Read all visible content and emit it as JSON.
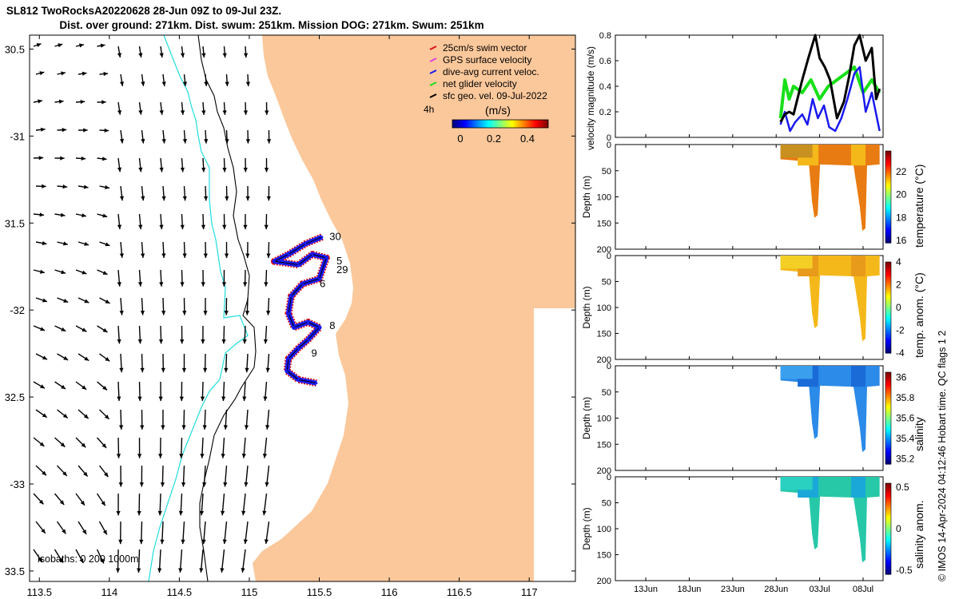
{
  "header": {
    "title_line1": "SL812 TwoRocksA20220628 28-Jun 09Z to 09-Jul 23Z.",
    "title_line2": "Dist. over ground: 271km. Dist. swum: 251km. Mission DOG: 271km. Swum: 251km"
  },
  "colors": {
    "land": "#fbc89b",
    "swim_vector": "#dd1111",
    "gps_velocity": "#e040e0",
    "dive_avg": "#1a1aee",
    "net_glider": "#18e018",
    "sfc_geo": "#000000",
    "isobath_0": "#000000",
    "isobath_200": "#000000",
    "isobath_1000": "#22dddd"
  },
  "map": {
    "lon_ticks": [
      "113.5",
      "114",
      "114.5",
      "115",
      "115.5",
      "116",
      "116.5",
      "117"
    ],
    "lat_ticks": [
      "30.5",
      "-31",
      "31.5",
      "-32",
      "32.5",
      "-33",
      "33.5"
    ],
    "lon_range": [
      113.43,
      117.33
    ],
    "lat_range": [
      -33.56,
      -30.42
    ],
    "isobaths_label": "isobaths: 0   200  1000m",
    "legend": [
      {
        "label": "25cm/s swim vector",
        "color_key": "swim_vector"
      },
      {
        "label": "GPS surface velocity",
        "color_key": "gps_velocity"
      },
      {
        "label": "dive-avg current veloc.",
        "color_key": "dive_avg"
      },
      {
        "label": "net glider velocity",
        "color_key": "net_glider"
      },
      {
        "label": "sfc geo. vel. 09-Jul-2022",
        "color_key": "sfc_geo"
      }
    ],
    "time_label": "4h",
    "colorbar_title": "(m/s)",
    "colorbar_ticks": [
      "0",
      "0.2",
      "0.4"
    ],
    "day_labels": [
      {
        "text": "30",
        "lon": 115.55,
        "lat": -31.58
      },
      {
        "text": "5",
        "lon": 115.6,
        "lat": -31.72
      },
      {
        "text": "29",
        "lon": 115.6,
        "lat": -31.77
      },
      {
        "text": "6",
        "lon": 115.48,
        "lat": -31.85
      },
      {
        "text": "8",
        "lon": 115.55,
        "lat": -32.09
      },
      {
        "text": "9",
        "lon": 115.42,
        "lat": -32.25
      }
    ]
  },
  "right_panels": {
    "x_ticks": [
      "13Jun",
      "18Jun",
      "23Jun",
      "28Jun",
      "03Jul",
      "08Jul"
    ],
    "velocity_ylabel": "velocity magnitude (m/s)",
    "velocity_yticks": [
      "0",
      "0.2",
      "0.4",
      "0.6",
      "0.8"
    ],
    "depth_ylabel": "Depth (m)",
    "depth_ticks": [
      "0",
      "50",
      "100",
      "150",
      "200"
    ],
    "temperature": {
      "label": "temperature (°C)",
      "ticks": [
        "16",
        "18",
        "20",
        "22"
      ]
    },
    "temp_anom": {
      "label": "temp. anom. (°C)",
      "ticks": [
        "-4",
        "-2",
        "0",
        "2",
        "4"
      ]
    },
    "salinity": {
      "label": "salinity",
      "ticks": [
        "35.2",
        "35.4",
        "35.6",
        "35.8",
        "36"
      ]
    },
    "salinity_anom": {
      "label": "salinity anom.",
      "ticks": [
        "-0.5",
        "0",
        "0.5"
      ]
    }
  },
  "footer": {
    "credit": "© IMOS 14-Apr-2024 04:12:46 Hobart time. QC flags 1  2"
  },
  "chart_data": [
    {
      "type": "scatter",
      "title": "SL812 TwoRocksA20220628 28-Jun 09Z to 09-Jul 23Z.",
      "xlabel": "",
      "ylabel": "",
      "xlim": [
        113.43,
        117.33
      ],
      "ylim": [
        -33.56,
        -30.42
      ],
      "series": [
        {
          "name": "dive-avg current veloc.",
          "x": [
            115.52,
            115.4,
            115.28,
            115.18,
            115.35,
            115.45,
            115.55,
            115.5,
            115.38,
            115.3,
            115.28,
            115.32,
            115.42,
            115.5,
            115.42,
            115.35,
            115.28,
            115.27,
            115.35,
            115.48
          ],
          "y": [
            -31.58,
            -31.62,
            -31.68,
            -31.72,
            -31.74,
            -31.68,
            -31.7,
            -31.82,
            -31.85,
            -31.92,
            -32.02,
            -32.1,
            -32.07,
            -32.1,
            -32.17,
            -32.22,
            -32.28,
            -32.35,
            -32.4,
            -32.42
          ]
        }
      ]
    },
    {
      "type": "line",
      "title": "",
      "ylabel": "velocity magnitude (m/s)",
      "ylim": [
        0,
        0.8
      ],
      "x_ticks": [
        "13Jun",
        "18Jun",
        "23Jun",
        "28Jun",
        "03Jul",
        "08Jul"
      ],
      "series": [
        {
          "name": "sfc geo. vel.",
          "x": [
            28.5,
            29.0,
            29.5,
            30.0,
            31.0,
            31.7,
            32.5,
            33.0,
            33.6,
            34.2,
            35.0,
            35.8,
            36.4,
            37.0,
            37.6,
            38.3,
            39.0,
            39.5,
            39.9
          ],
          "y": [
            0.12,
            0.18,
            0.2,
            0.18,
            0.45,
            0.62,
            0.8,
            0.62,
            0.55,
            0.45,
            0.15,
            0.28,
            0.48,
            0.72,
            0.8,
            0.6,
            0.7,
            0.3,
            0.38
          ]
        },
        {
          "name": "net glider velocity",
          "x": [
            28.5,
            29.0,
            29.5,
            30.0,
            31.0,
            32.0,
            33.0,
            34.0,
            35.0,
            36.0,
            37.0,
            38.0,
            39.0,
            39.9
          ],
          "y": [
            0.15,
            0.45,
            0.3,
            0.4,
            0.35,
            0.45,
            0.3,
            0.4,
            0.45,
            0.5,
            0.55,
            0.35,
            0.45,
            0.35
          ]
        },
        {
          "name": "dive-avg current veloc.",
          "x": [
            28.5,
            29.0,
            29.6,
            30.2,
            31.0,
            31.6,
            32.2,
            32.8,
            33.5,
            34.1,
            34.8,
            35.5,
            36.2,
            37.0,
            37.6,
            38.3,
            39.0,
            39.6,
            39.9
          ],
          "y": [
            0.1,
            0.2,
            0.05,
            0.12,
            0.18,
            0.1,
            0.3,
            0.15,
            0.25,
            0.08,
            0.05,
            0.15,
            0.3,
            0.5,
            0.55,
            0.2,
            0.35,
            0.15,
            0.05
          ]
        }
      ]
    },
    {
      "type": "heatmap",
      "ylabel": "Depth (m)",
      "ylim": [
        200,
        0
      ],
      "colorbar_label": "temperature (°C)",
      "colorbar_range": [
        15.8,
        23.8
      ],
      "max_depth": 200,
      "dip_depths": [
        140,
        165
      ]
    },
    {
      "type": "heatmap",
      "ylabel": "Depth (m)",
      "ylim": [
        200,
        0
      ],
      "colorbar_label": "temp. anom. (°C)",
      "colorbar_range": [
        -4,
        4
      ]
    },
    {
      "type": "heatmap",
      "ylabel": "Depth (m)",
      "ylim": [
        200,
        0
      ],
      "colorbar_label": "salinity",
      "colorbar_range": [
        35.15,
        36.05
      ]
    },
    {
      "type": "heatmap",
      "ylabel": "Depth (m)",
      "ylim": [
        200,
        0
      ],
      "colorbar_label": "salinity anom.",
      "colorbar_range": [
        -0.55,
        0.55
      ]
    }
  ]
}
